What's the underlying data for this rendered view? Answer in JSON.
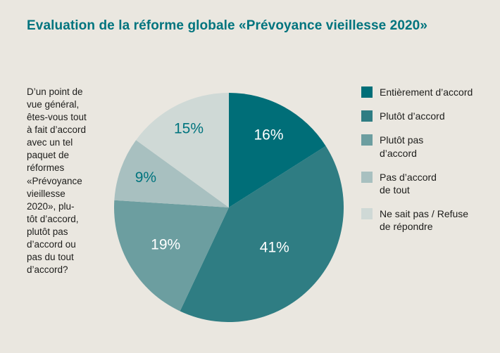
{
  "title": "Evaluation de la réforme globale «Prévoyance vieillesse 2020»",
  "question": "D’un point de\nvue général,\nêtes-vous tout\nà fait d’accord\navec un tel\npaquet de\nréformes\n«Prévoyance\nvieillesse\n2020», plu-\ntôt d’accord,\nplutôt pas\nd’accord ou\npas du tout\nd’accord?",
  "chart_data": {
    "type": "pie",
    "title": "Evaluation de la réforme globale «Prévoyance vieillesse 2020»",
    "labels": [
      "Entièrement d’accord",
      "Plutôt d’accord",
      "Plutôt pas d’accord",
      "Pas d’accord de tout",
      "Ne sait pas / Refuse de répondre"
    ],
    "values": [
      16,
      41,
      19,
      9,
      15
    ],
    "unit": "%",
    "colors": [
      "#006e78",
      "#2f7d83",
      "#6c9ea0",
      "#a8c0c0",
      "#cfd9d6"
    ],
    "value_label_colors": [
      "#ffffff",
      "#ffffff",
      "#ffffff",
      "#00747e",
      "#00747e"
    ],
    "start_angle_deg": 0,
    "direction": "clockwise",
    "legend_position": "right"
  },
  "legend": {
    "items": [
      {
        "label": "Entièrement d’accord",
        "color": "#006e78"
      },
      {
        "label": "Plutôt d’accord",
        "color": "#2f7d83"
      },
      {
        "label": "Plutôt pas\nd’accord",
        "color": "#6c9ea0"
      },
      {
        "label": "Pas d’accord\nde tout",
        "color": "#a8c0c0"
      },
      {
        "label": "Ne sait pas / Refuse\nde répondre",
        "color": "#cfd9d6"
      }
    ]
  },
  "accent_color": "#00747e",
  "background_color": "#eae7e0"
}
